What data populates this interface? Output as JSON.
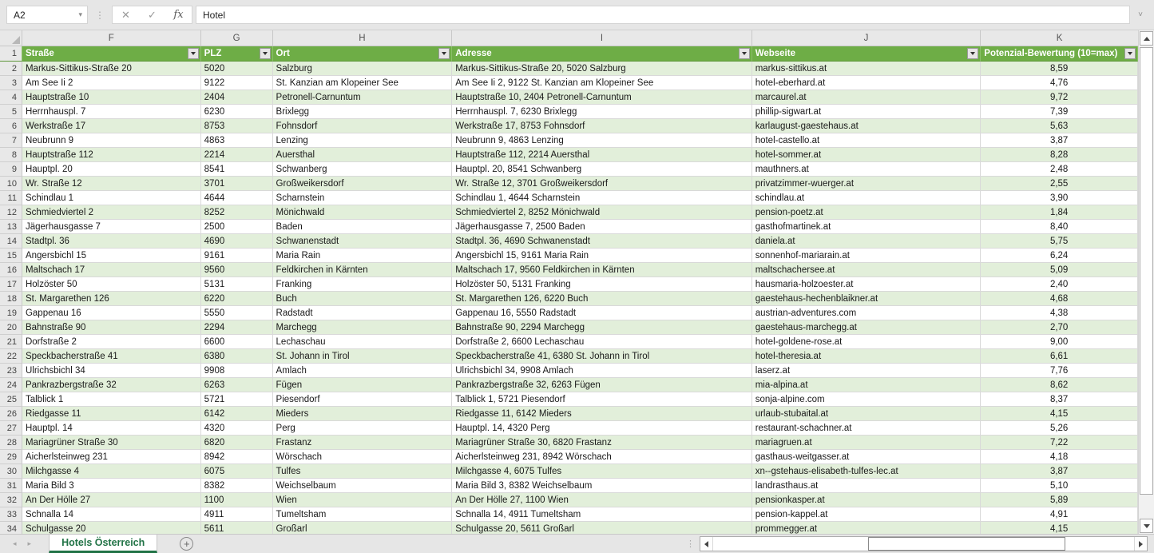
{
  "chrome": {
    "name_box": "A2",
    "name_box_arrow": "▾",
    "dots": "⋮",
    "cancel_icon": "✕",
    "enter_icon": "✓",
    "fx_label": "fx",
    "formula_value": "Hotel",
    "formula_chevron": "˅"
  },
  "grid": {
    "column_letters": [
      "F",
      "G",
      "H",
      "I",
      "J",
      "K"
    ],
    "header_row_num": "1",
    "headers": [
      "Straße",
      "PLZ",
      "Ort",
      "Adresse",
      "Webseite",
      "Potenzial-Bewertung (10=max)"
    ],
    "rows": [
      {
        "num": "2",
        "strasse": "Markus-Sittikus-Straße 20",
        "plz": "5020",
        "ort": "Salzburg",
        "adresse": "Markus-Sittikus-Straße 20, 5020 Salzburg",
        "webseite": "markus-sittikus.at",
        "potenzial": "8,59"
      },
      {
        "num": "3",
        "strasse": "Am See Ii 2",
        "plz": "9122",
        "ort": "St. Kanzian am Klopeiner See",
        "adresse": "Am See Ii 2, 9122 St. Kanzian am Klopeiner See",
        "webseite": "hotel-eberhard.at",
        "potenzial": "4,76"
      },
      {
        "num": "4",
        "strasse": "Hauptstraße 10",
        "plz": "2404",
        "ort": "Petronell-Carnuntum",
        "adresse": "Hauptstraße 10, 2404 Petronell-Carnuntum",
        "webseite": "marcaurel.at",
        "potenzial": "9,72"
      },
      {
        "num": "5",
        "strasse": "Herrnhauspl. 7",
        "plz": "6230",
        "ort": "Brixlegg",
        "adresse": "Herrnhauspl. 7, 6230 Brixlegg",
        "webseite": "phillip-sigwart.at",
        "potenzial": "7,39"
      },
      {
        "num": "6",
        "strasse": "Werkstraße 17",
        "plz": "8753",
        "ort": "Fohnsdorf",
        "adresse": "Werkstraße 17, 8753 Fohnsdorf",
        "webseite": "karlaugust-gaestehaus.at",
        "potenzial": "5,63"
      },
      {
        "num": "7",
        "strasse": "Neubrunn 9",
        "plz": "4863",
        "ort": "Lenzing",
        "adresse": "Neubrunn 9, 4863 Lenzing",
        "webseite": "hotel-castello.at",
        "potenzial": "3,87"
      },
      {
        "num": "8",
        "strasse": "Hauptstraße 112",
        "plz": "2214",
        "ort": "Auersthal",
        "adresse": "Hauptstraße 112, 2214 Auersthal",
        "webseite": "hotel-sommer.at",
        "potenzial": "8,28"
      },
      {
        "num": "9",
        "strasse": "Hauptpl. 20",
        "plz": "8541",
        "ort": "Schwanberg",
        "adresse": "Hauptpl. 20, 8541 Schwanberg",
        "webseite": "mauthners.at",
        "potenzial": "2,48"
      },
      {
        "num": "10",
        "strasse": "Wr. Straße 12",
        "plz": "3701",
        "ort": "Großweikersdorf",
        "adresse": "Wr. Straße 12, 3701 Großweikersdorf",
        "webseite": "privatzimmer-wuerger.at",
        "potenzial": "2,55"
      },
      {
        "num": "11",
        "strasse": "Schindlau 1",
        "plz": "4644",
        "ort": "Scharnstein",
        "adresse": "Schindlau 1, 4644 Scharnstein",
        "webseite": "schindlau.at",
        "potenzial": "3,90"
      },
      {
        "num": "12",
        "strasse": "Schmiedviertel 2",
        "plz": "8252",
        "ort": "Mönichwald",
        "adresse": "Schmiedviertel 2, 8252 Mönichwald",
        "webseite": "pension-poetz.at",
        "potenzial": "1,84"
      },
      {
        "num": "13",
        "strasse": "Jägerhausgasse 7",
        "plz": "2500",
        "ort": "Baden",
        "adresse": "Jägerhausgasse 7, 2500 Baden",
        "webseite": "gasthofmartinek.at",
        "potenzial": "8,40"
      },
      {
        "num": "14",
        "strasse": "Stadtpl. 36",
        "plz": "4690",
        "ort": "Schwanenstadt",
        "adresse": "Stadtpl. 36, 4690 Schwanenstadt",
        "webseite": "daniela.at",
        "potenzial": "5,75"
      },
      {
        "num": "15",
        "strasse": "Angersbichl 15",
        "plz": "9161",
        "ort": "Maria Rain",
        "adresse": "Angersbichl 15, 9161 Maria Rain",
        "webseite": "sonnenhof-mariarain.at",
        "potenzial": "6,24"
      },
      {
        "num": "16",
        "strasse": "Maltschach 17",
        "plz": "9560",
        "ort": "Feldkirchen in Kärnten",
        "adresse": "Maltschach 17, 9560 Feldkirchen in Kärnten",
        "webseite": "maltschachersee.at",
        "potenzial": "5,09"
      },
      {
        "num": "17",
        "strasse": "Holzöster 50",
        "plz": "5131",
        "ort": "Franking",
        "adresse": "Holzöster 50, 5131 Franking",
        "webseite": "hausmaria-holzoester.at",
        "potenzial": "2,40"
      },
      {
        "num": "18",
        "strasse": "St. Margarethen 126",
        "plz": "6220",
        "ort": "Buch",
        "adresse": "St. Margarethen 126, 6220 Buch",
        "webseite": "gaestehaus-hechenblaikner.at",
        "potenzial": "4,68"
      },
      {
        "num": "19",
        "strasse": "Gappenau 16",
        "plz": "5550",
        "ort": "Radstadt",
        "adresse": "Gappenau 16, 5550 Radstadt",
        "webseite": "austrian-adventures.com",
        "potenzial": "4,38"
      },
      {
        "num": "20",
        "strasse": "Bahnstraße 90",
        "plz": "2294",
        "ort": "Marchegg",
        "adresse": "Bahnstraße 90, 2294 Marchegg",
        "webseite": "gaestehaus-marchegg.at",
        "potenzial": "2,70"
      },
      {
        "num": "21",
        "strasse": "Dorfstraße 2",
        "plz": "6600",
        "ort": "Lechaschau",
        "adresse": "Dorfstraße 2, 6600 Lechaschau",
        "webseite": "hotel-goldene-rose.at",
        "potenzial": "9,00"
      },
      {
        "num": "22",
        "strasse": "Speckbacherstraße 41",
        "plz": "6380",
        "ort": "St. Johann in Tirol",
        "adresse": "Speckbacherstraße 41, 6380 St. Johann in Tirol",
        "webseite": "hotel-theresia.at",
        "potenzial": "6,61"
      },
      {
        "num": "23",
        "strasse": "Ulrichsbichl 34",
        "plz": "9908",
        "ort": "Amlach",
        "adresse": "Ulrichsbichl 34, 9908 Amlach",
        "webseite": "laserz.at",
        "potenzial": "7,76"
      },
      {
        "num": "24",
        "strasse": "Pankrazbergstraße 32",
        "plz": "6263",
        "ort": "Fügen",
        "adresse": "Pankrazbergstraße 32, 6263 Fügen",
        "webseite": "mia-alpina.at",
        "potenzial": "8,62"
      },
      {
        "num": "25",
        "strasse": "Talblick 1",
        "plz": "5721",
        "ort": "Piesendorf",
        "adresse": "Talblick 1, 5721 Piesendorf",
        "webseite": "sonja-alpine.com",
        "potenzial": "8,37"
      },
      {
        "num": "26",
        "strasse": "Riedgasse 11",
        "plz": "6142",
        "ort": "Mieders",
        "adresse": "Riedgasse 11, 6142 Mieders",
        "webseite": "urlaub-stubaital.at",
        "potenzial": "4,15"
      },
      {
        "num": "27",
        "strasse": "Hauptpl. 14",
        "plz": "4320",
        "ort": "Perg",
        "adresse": "Hauptpl. 14, 4320 Perg",
        "webseite": "restaurant-schachner.at",
        "potenzial": "5,26"
      },
      {
        "num": "28",
        "strasse": "Mariagrüner Straße 30",
        "plz": "6820",
        "ort": "Frastanz",
        "adresse": "Mariagrüner Straße 30, 6820 Frastanz",
        "webseite": "mariagruen.at",
        "potenzial": "7,22"
      },
      {
        "num": "29",
        "strasse": "Aicherlsteinweg 231",
        "plz": "8942",
        "ort": "Wörschach",
        "adresse": "Aicherlsteinweg 231, 8942 Wörschach",
        "webseite": "gasthaus-weitgasser.at",
        "potenzial": "4,18"
      },
      {
        "num": "30",
        "strasse": "Milchgasse 4",
        "plz": "6075",
        "ort": "Tulfes",
        "adresse": "Milchgasse 4, 6075 Tulfes",
        "webseite": "xn--gstehaus-elisabeth-tulfes-lec.at",
        "potenzial": "3,87"
      },
      {
        "num": "31",
        "strasse": "Maria Bild 3",
        "plz": "8382",
        "ort": "Weichselbaum",
        "adresse": "Maria Bild 3, 8382 Weichselbaum",
        "webseite": "landrasthaus.at",
        "potenzial": "5,10"
      },
      {
        "num": "32",
        "strasse": "An Der Hölle 27",
        "plz": "1100",
        "ort": "Wien",
        "adresse": "An Der Hölle 27, 1100 Wien",
        "webseite": "pensionkasper.at",
        "potenzial": "5,89"
      },
      {
        "num": "33",
        "strasse": "Schnalla 14",
        "plz": "4911",
        "ort": "Tumeltsham",
        "adresse": "Schnalla 14, 4911 Tumeltsham",
        "webseite": "pension-kappel.at",
        "potenzial": "4,91"
      },
      {
        "num": "34",
        "strasse": "Schulgasse 20",
        "plz": "5611",
        "ort": "Großarl",
        "adresse": "Schulgasse 20, 5611 Großarl",
        "webseite": "prommegger.at",
        "potenzial": "4,15"
      }
    ]
  },
  "tabs": {
    "active": "Hotels Österreich",
    "add_label": "+",
    "nav_left": "◂",
    "nav_right": "▸"
  },
  "colors": {
    "header_green": "#6ead46",
    "band_green": "#e2efda",
    "tab_green": "#217346"
  }
}
